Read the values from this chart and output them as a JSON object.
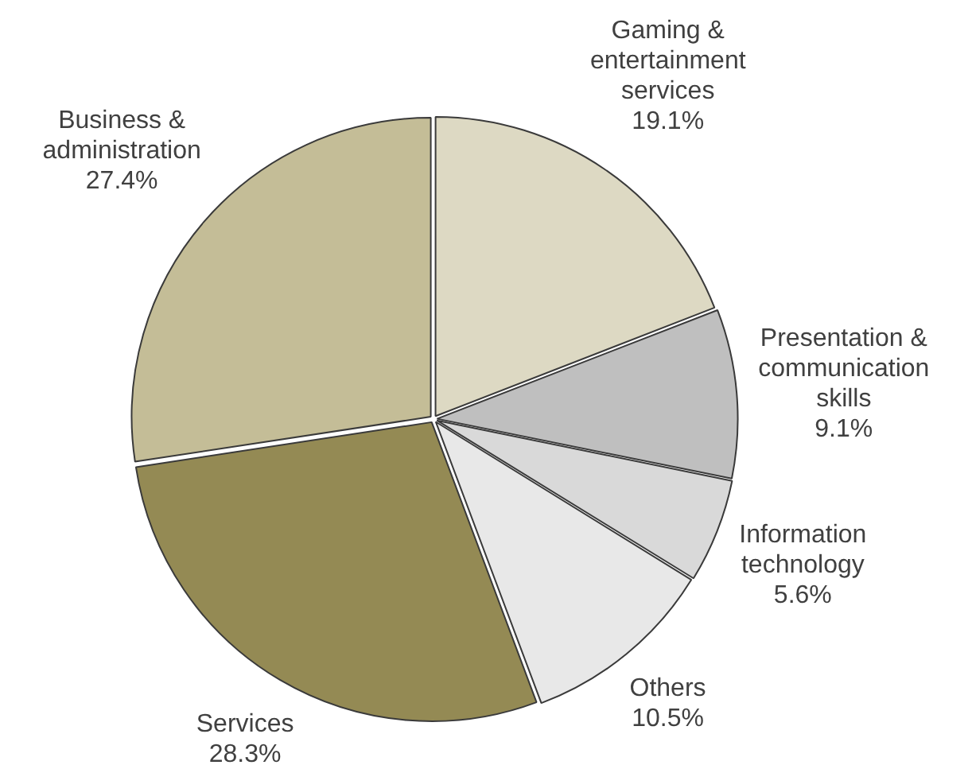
{
  "chart_data": {
    "type": "pie",
    "categories": [
      "Gaming & entertainment services",
      "Presentation & communication skills",
      "Information technology",
      "Others",
      "Services",
      "Business & administration"
    ],
    "values": [
      19.1,
      9.1,
      5.6,
      10.5,
      28.3,
      27.4
    ],
    "value_labels": [
      "19.1%",
      "9.1%",
      "5.6%",
      "10.5%",
      "28.3%",
      "27.4%"
    ],
    "colors": [
      "#ddd9c3",
      "#bfbfbf",
      "#d9d9d9",
      "#e8e8e8",
      "#948a54",
      "#c4bd97"
    ],
    "legend": false
  }
}
